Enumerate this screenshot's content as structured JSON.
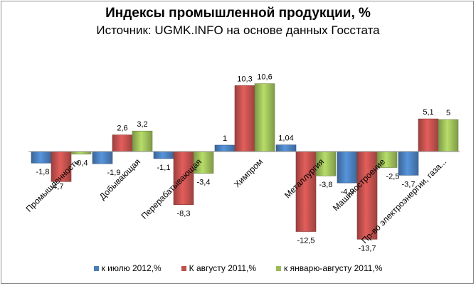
{
  "chart_data": {
    "type": "bar",
    "title": "Индексы промышленной продукции, %",
    "subtitle": "Источник: UGMK.INFO на основе данных Госстата",
    "categories": [
      "Промышленность",
      "Добывающая",
      "Перерабатывающая",
      "Химпром",
      "Металлургия",
      "Машиностроение",
      "Пр-во электроэнергии, газа..."
    ],
    "series": [
      {
        "name": "к июлю 2012,%",
        "color": "#4a7ebb",
        "values": [
          -1.8,
          -1.9,
          -1.1,
          1,
          1.04,
          -4.9,
          -3.7
        ],
        "labels": [
          "-1,8",
          "-1,9",
          "-1,1",
          "1",
          "1,04",
          "-4,9",
          "-3,7"
        ]
      },
      {
        "name": "К августу 2011,%",
        "color": "#c0504d",
        "values": [
          -4.7,
          2.6,
          -8.3,
          10.3,
          -12.5,
          -13.7,
          5.1
        ],
        "labels": [
          "-4,7",
          "2,6",
          "-8,3",
          "10,3",
          "-12,5",
          "-13,7",
          "5,1"
        ]
      },
      {
        "name": "к январю-августу 2011,%",
        "color": "#9bbb59",
        "values": [
          -0.4,
          3.2,
          -3.4,
          10.6,
          -3.8,
          -2.5,
          5
        ],
        "labels": [
          "-0,4",
          "3,2",
          "-3,4",
          "10,6",
          "-3,8",
          "-2,5",
          "5"
        ]
      }
    ],
    "ylim": [
      -15,
      12
    ],
    "legend_position": "bottom",
    "grid": false
  }
}
